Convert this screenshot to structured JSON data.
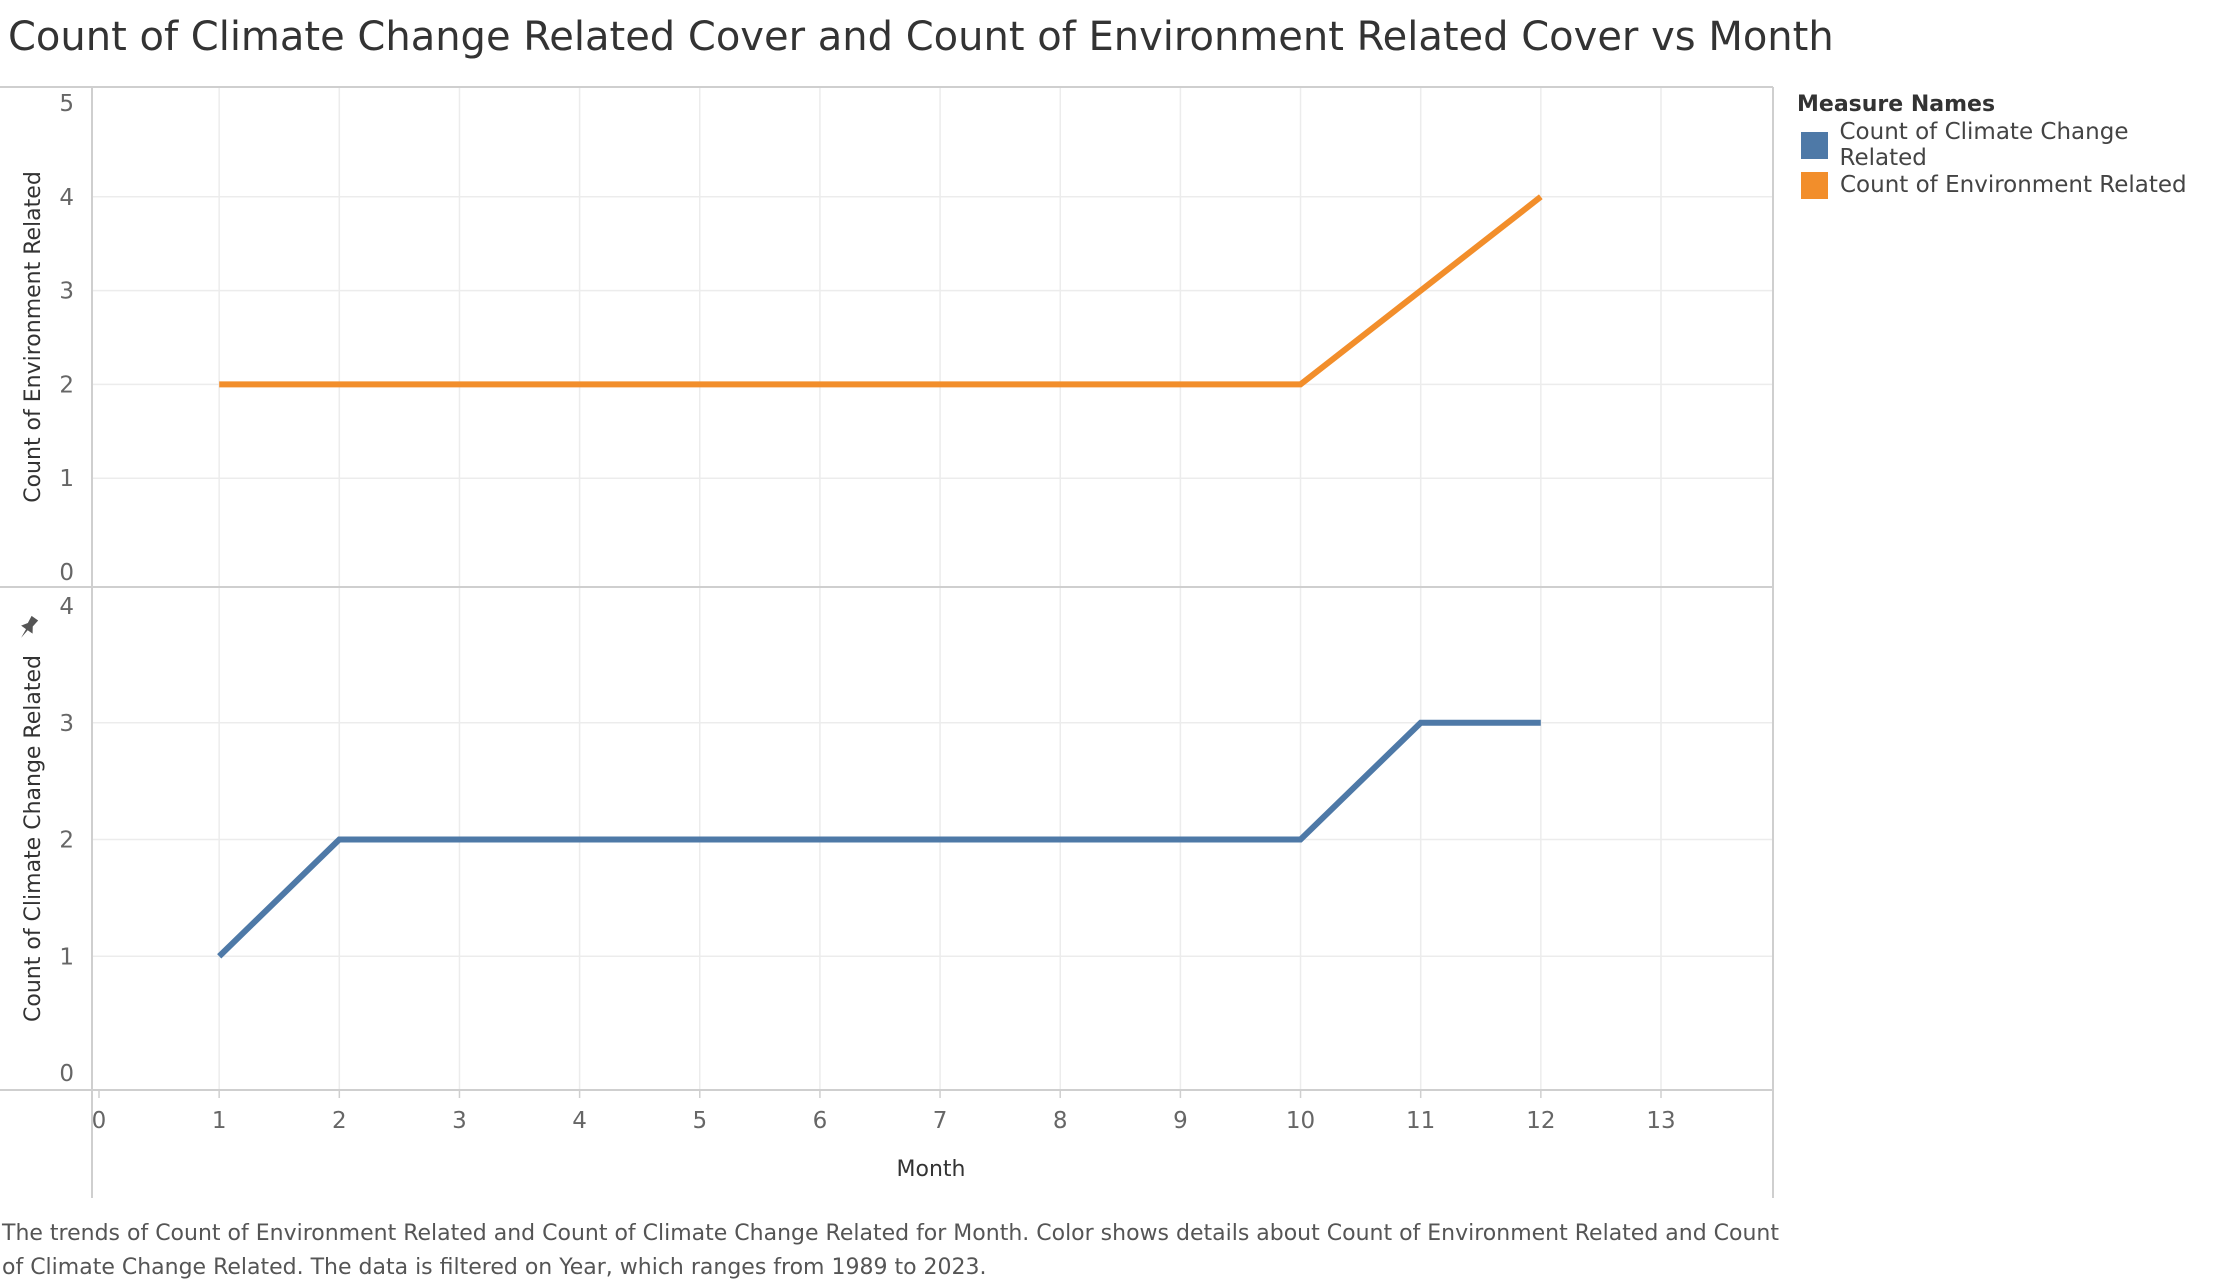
{
  "title": "Count of Climate Change Related Cover and Count of Environment Related Cover vs Month",
  "legend": {
    "title": "Measure Names",
    "items": [
      {
        "label": "Count of Climate Change Related",
        "color": "#4e79a7"
      },
      {
        "label": "Count of Environment Related",
        "color": "#f28e2b"
      }
    ]
  },
  "caption": "The trends of Count of Environment Related and Count of Climate Change Related for Month.  Color shows details about Count of Environment Related and Count of Climate Change Related. The data is filtered on Year, which ranges from 1989 to 2023.",
  "chart_data": {
    "type": "line",
    "title": "Count of Climate Change Related Cover and Count of Environment Related Cover vs Month",
    "xlabel": "Month",
    "xlim": [
      0,
      13
    ],
    "x_ticks": [
      0,
      1,
      2,
      3,
      4,
      5,
      6,
      7,
      8,
      9,
      10,
      11,
      12,
      13
    ],
    "grid": true,
    "legend_position": "top-right",
    "x": [
      1,
      2,
      3,
      4,
      5,
      6,
      7,
      8,
      9,
      10,
      11,
      12
    ],
    "panels": [
      {
        "ylabel": "Count of Environment Related",
        "ylim": [
          0,
          5
        ],
        "y_ticks": [
          0,
          1,
          2,
          3,
          4,
          5
        ],
        "series": [
          {
            "name": "Count of Environment Related",
            "color": "#f28e2b",
            "values": [
              2,
              2,
              2,
              2,
              2,
              2,
              2,
              2,
              2,
              2,
              3,
              4
            ]
          }
        ]
      },
      {
        "ylabel": "Count of Climate Change Related",
        "ylim": [
          0,
          4
        ],
        "y_ticks": [
          0,
          1,
          2,
          3,
          4
        ],
        "series": [
          {
            "name": "Count of Climate Change Related",
            "color": "#4e79a7",
            "values": [
              1,
              2,
              2,
              2,
              2,
              2,
              2,
              2,
              2,
              2,
              3,
              3
            ]
          }
        ]
      }
    ]
  }
}
